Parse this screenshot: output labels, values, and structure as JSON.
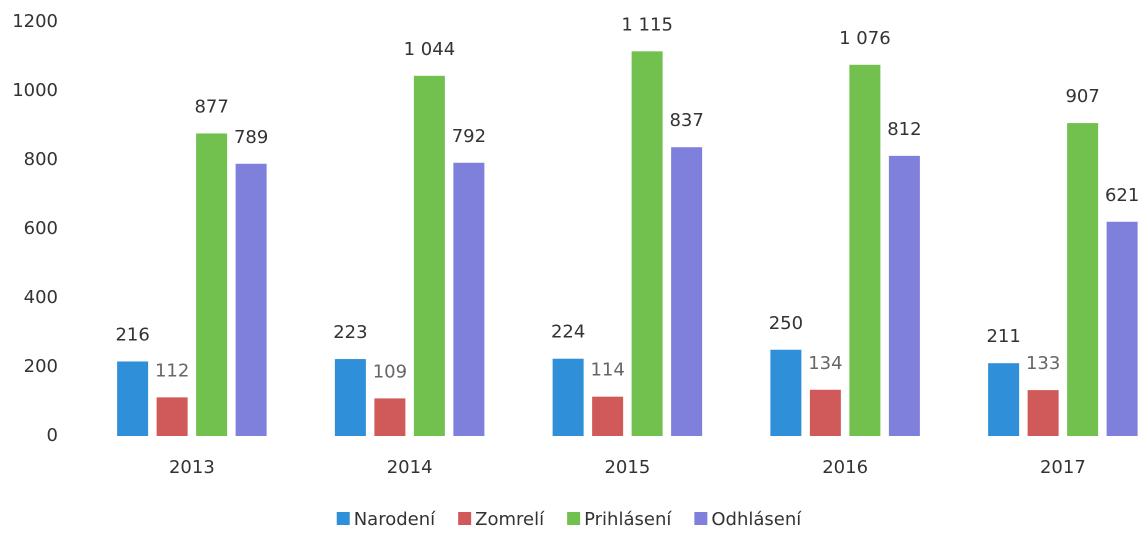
{
  "chart_data": {
    "type": "bar",
    "categories": [
      "2013",
      "2014",
      "2015",
      "2016",
      "2017"
    ],
    "series": [
      {
        "name": "Narodení",
        "color": "#2f8fd8",
        "values": [
          216,
          223,
          224,
          250,
          211
        ]
      },
      {
        "name": "Zomrelí",
        "color": "#d05a5a",
        "values": [
          112,
          109,
          114,
          134,
          133
        ]
      },
      {
        "name": "Prihlásení",
        "color": "#72c04e",
        "values": [
          877,
          1044,
          1115,
          1076,
          907
        ],
        "value_labels": [
          "877",
          "1 044",
          "1 115",
          "1 076",
          "907"
        ]
      },
      {
        "name": "Odhlásení",
        "color": "#7f7fdc",
        "values": [
          789,
          792,
          837,
          812,
          621
        ]
      }
    ],
    "ylim": [
      0,
      1200
    ],
    "yticks": [
      0,
      200,
      400,
      600,
      800,
      1000,
      1200
    ],
    "grid": false,
    "legend": "bottom"
  }
}
